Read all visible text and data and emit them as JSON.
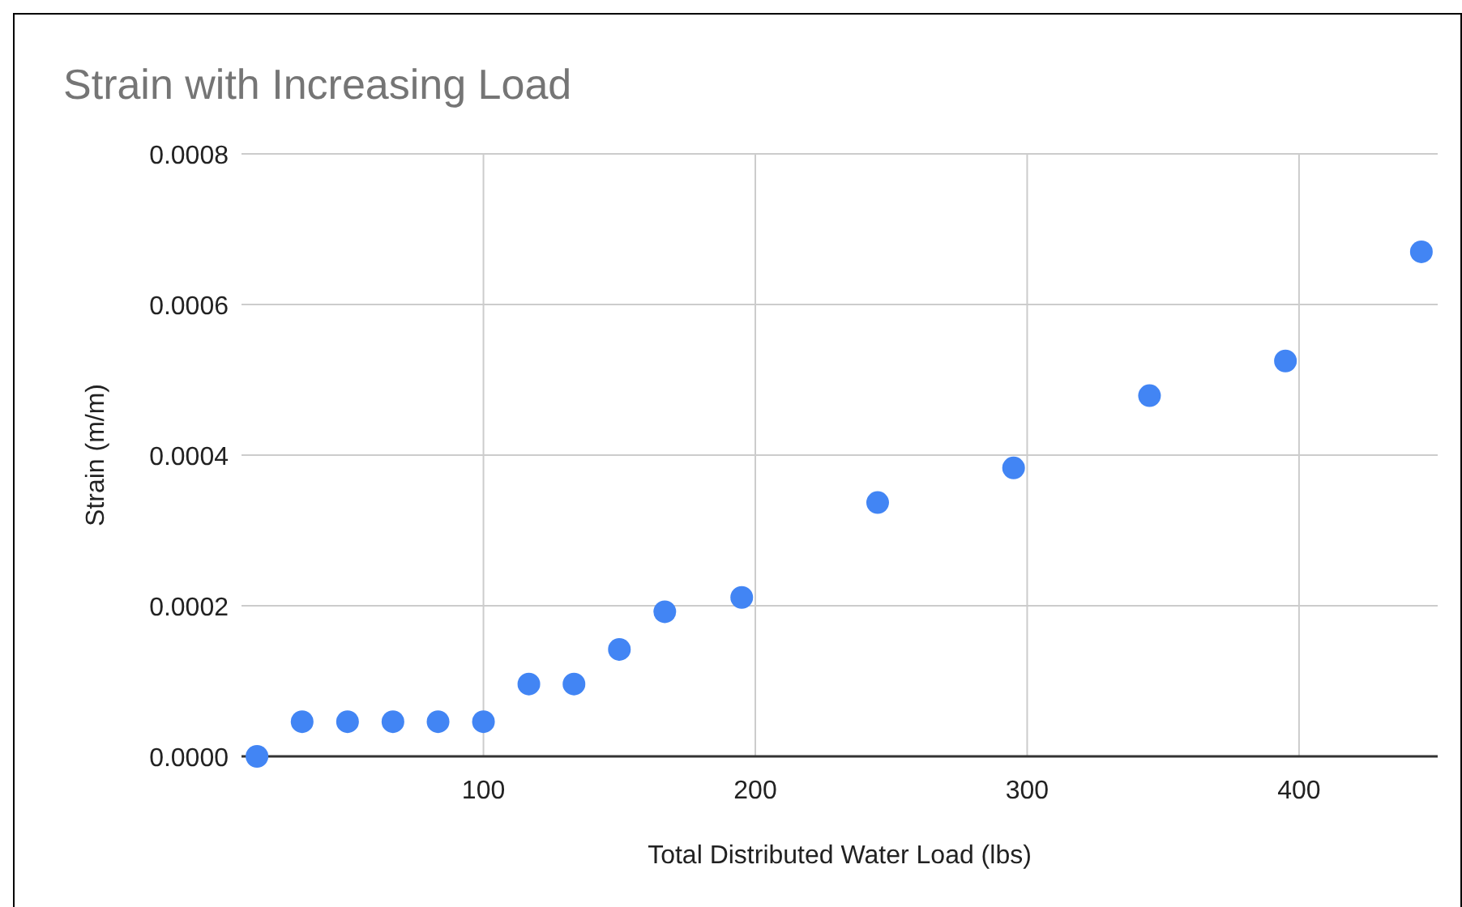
{
  "chart_data": {
    "type": "scatter",
    "title": "Strain with Increasing Load",
    "xlabel": "Total Distributed Water Load (lbs)",
    "ylabel": "Strain (m/m)",
    "x": [
      16.7,
      33.3,
      50,
      66.7,
      83.3,
      100,
      116.7,
      133.3,
      150,
      166.7,
      195,
      245,
      295,
      345,
      395,
      445
    ],
    "series": [
      {
        "color": "#4285f4",
        "values": [
          0,
          4.6e-05,
          4.6e-05,
          4.6e-05,
          4.6e-05,
          4.6e-05,
          9.6e-05,
          9.6e-05,
          0.000142,
          0.000192,
          0.000211,
          0.000337,
          0.000383,
          0.000479,
          0.000525,
          0.00067
        ]
      }
    ],
    "xlim": [
      11,
      451
    ],
    "xticks": [
      100,
      200,
      300,
      400
    ],
    "ylim": [
      0,
      0.0008
    ],
    "yticks": [
      {
        "value": 0,
        "label": "0.0000"
      },
      {
        "value": 0.0002,
        "label": "0.0002"
      },
      {
        "value": 0.0004,
        "label": "0.0004"
      },
      {
        "value": 0.0006,
        "label": "0.0006"
      },
      {
        "value": 0.0008,
        "label": "0.0008"
      }
    ],
    "grid": true,
    "marker": "circle"
  }
}
